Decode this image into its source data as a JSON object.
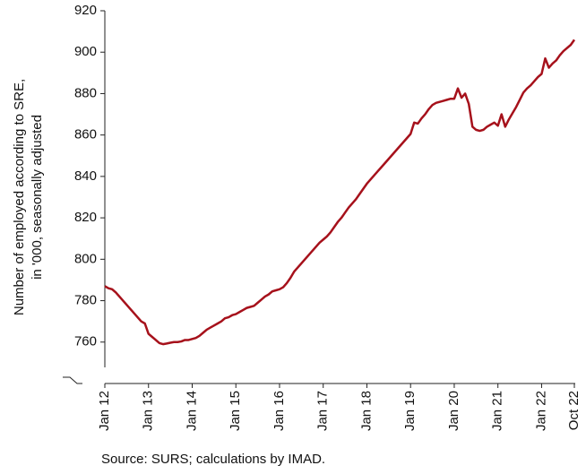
{
  "chart_data": {
    "type": "line",
    "y_label": [
      "Number of employed according to SRE,",
      "in '000, seasonally adjusted"
    ],
    "source": "Source: SURS; calculations by IMAD.",
    "categories": [
      "Jan 12",
      null,
      null,
      null,
      null,
      null,
      null,
      null,
      null,
      null,
      null,
      null,
      "Jan 13",
      null,
      null,
      null,
      null,
      null,
      null,
      null,
      null,
      null,
      null,
      null,
      "Jan 14",
      null,
      null,
      null,
      null,
      null,
      null,
      null,
      null,
      null,
      null,
      null,
      "Jan 15",
      null,
      null,
      null,
      null,
      null,
      null,
      null,
      null,
      null,
      null,
      null,
      "Jan 16",
      null,
      null,
      null,
      null,
      null,
      null,
      null,
      null,
      null,
      null,
      null,
      "Jan 17",
      null,
      null,
      null,
      null,
      null,
      null,
      null,
      null,
      null,
      null,
      null,
      "Jan 18",
      null,
      null,
      null,
      null,
      null,
      null,
      null,
      null,
      null,
      null,
      null,
      "Jan 19",
      null,
      null,
      null,
      null,
      null,
      null,
      null,
      null,
      null,
      null,
      null,
      "Jan 20",
      null,
      null,
      null,
      null,
      null,
      null,
      null,
      null,
      null,
      null,
      null,
      "Jan 21",
      null,
      null,
      null,
      null,
      null,
      null,
      null,
      null,
      null,
      null,
      null,
      "Jan 22",
      null,
      null,
      null,
      null,
      null,
      null,
      null,
      null,
      "Oct 22"
    ],
    "series": [
      {
        "color": "#a6111b",
        "values": [
          787,
          786,
          785.5,
          784,
          782,
          780,
          778,
          776,
          774,
          772,
          770,
          769,
          764,
          762.5,
          761,
          759.5,
          759,
          759.3,
          759.7,
          760,
          760,
          760.3,
          761,
          761,
          761.5,
          762,
          763,
          764.5,
          766,
          767,
          768,
          769,
          770,
          771.5,
          772,
          773,
          773.5,
          774.5,
          775.5,
          776.5,
          777,
          777.5,
          779,
          780.5,
          782,
          783,
          784.5,
          785,
          785.5,
          786.5,
          788.5,
          791,
          794,
          796,
          798,
          800,
          802,
          804,
          806,
          808,
          809.5,
          811,
          813,
          815.5,
          818,
          820,
          822.5,
          825,
          827,
          829,
          831.5,
          834,
          836.5,
          838.5,
          840.5,
          842.5,
          844.5,
          846.5,
          848.5,
          850.5,
          852.5,
          854.5,
          856.5,
          858.5,
          860.5,
          866,
          865.5,
          868,
          870,
          872.5,
          874.5,
          875.5,
          876,
          876.5,
          877,
          877.5,
          877.5,
          882.5,
          878,
          880,
          875,
          864,
          862.5,
          862,
          862.5,
          864,
          865,
          866,
          864.5,
          870,
          864,
          867.5,
          870.5,
          873.5,
          877,
          880.5,
          882.5,
          884,
          886,
          888,
          889.5,
          897,
          892.5,
          894.5,
          896,
          898.5,
          900.5,
          902,
          903.5,
          906
        ]
      }
    ],
    "ylim": [
      740,
      920
    ],
    "yticks": [
      760,
      780,
      800,
      820,
      840,
      860,
      880,
      900,
      920
    ],
    "grid": false
  }
}
